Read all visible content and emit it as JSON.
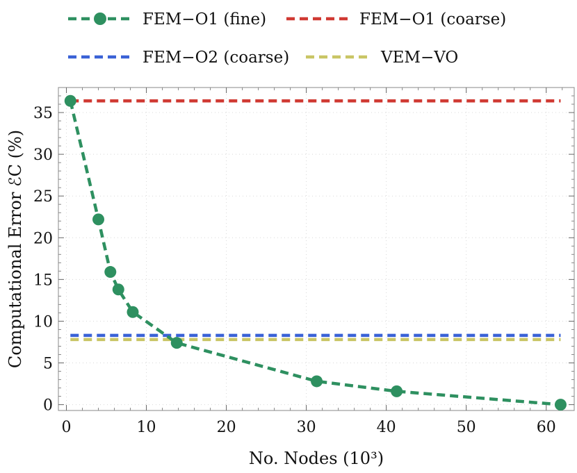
{
  "chart_data": {
    "type": "line",
    "xlabel": "No. Nodes (10³)",
    "ylabel": "Computational Error ℰC (%)",
    "xlim": [
      -1,
      63.5
    ],
    "ylim": [
      -0.7,
      38
    ],
    "xticks": [
      0,
      10,
      20,
      30,
      40,
      50,
      60
    ],
    "yticks": [
      0,
      5,
      10,
      15,
      20,
      25,
      30,
      35
    ],
    "grid": true,
    "legend_position": "top",
    "series": [
      {
        "name": "FEM−O1 (fine)",
        "color": "#2e9060",
        "style": "dashed-markers",
        "x": [
          0.5,
          4.0,
          5.5,
          6.5,
          8.3,
          13.8,
          31.3,
          41.3,
          61.8
        ],
        "y": [
          36.4,
          22.2,
          15.9,
          13.8,
          11.1,
          7.4,
          2.8,
          1.6,
          0.0
        ]
      },
      {
        "name": "FEM−O1 (coarse)",
        "color": "#d03a33",
        "style": "dashed",
        "x": [
          0.5,
          61.8
        ],
        "y": [
          36.4,
          36.4
        ]
      },
      {
        "name": "FEM−O2 (coarse)",
        "color": "#3a62d6",
        "style": "dashed",
        "x": [
          0.5,
          61.8
        ],
        "y": [
          8.3,
          8.3
        ]
      },
      {
        "name": "VEM−VO",
        "color": "#c9c565",
        "style": "dashed",
        "x": [
          0.5,
          61.8
        ],
        "y": [
          7.8,
          7.8
        ]
      }
    ]
  }
}
